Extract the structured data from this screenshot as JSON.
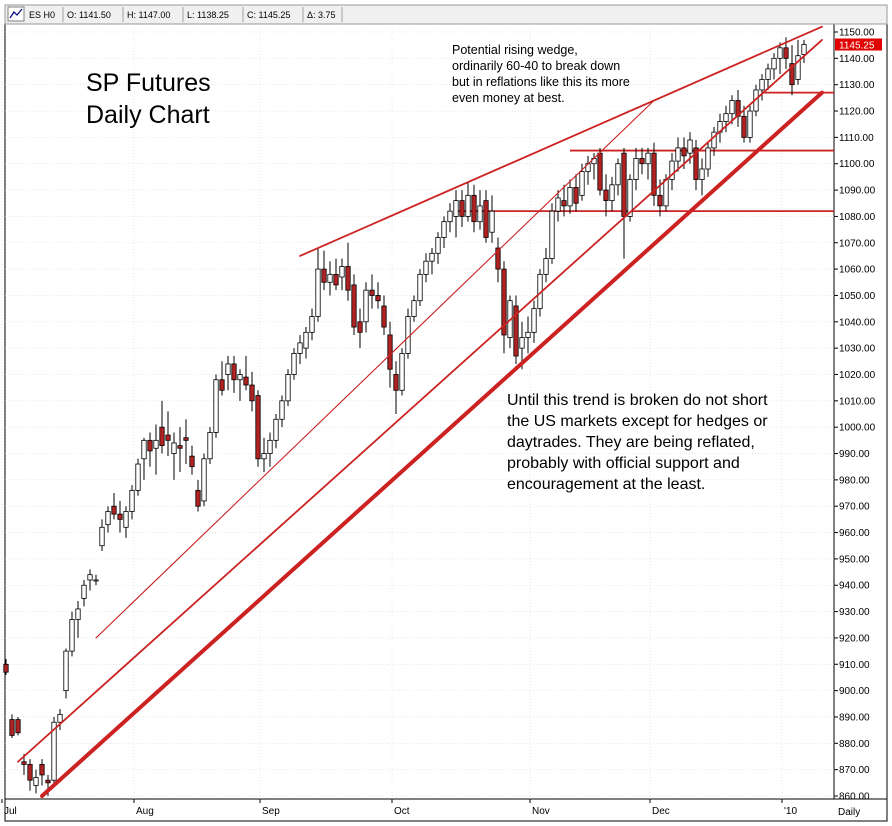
{
  "header": {
    "symbol": "ES H0",
    "open": "O: 1141.50",
    "high": "H: 1147.00",
    "low": "L: 1138.25",
    "close": "C: 1145.25",
    "change": "Δ: 3.75"
  },
  "annotations": {
    "title_line1": "SP Futures",
    "title_line2": "Daily Chart",
    "wedge_note": [
      "Potential rising wedge,",
      "ordinarily 60-40 to break down",
      "but in reflations like this its more",
      "even money at best."
    ],
    "trend_note": [
      "Until this trend is broken do not short",
      "the US markets except for hedges or",
      "daytrades. They are being reflated,",
      "probably with official support and",
      "encouragement at the least."
    ]
  },
  "colors": {
    "up": "#ffffff",
    "down": "#b22222",
    "trendline": "#cc2222",
    "grid": "#d8d8d8",
    "price_tag": "#e00000"
  },
  "chart_data": {
    "type": "candlestick",
    "period_label": "Daily",
    "price_tag": "1145.25",
    "ylim": [
      860,
      1150
    ],
    "y_ticks": [
      860,
      870,
      880,
      890,
      900,
      910,
      920,
      930,
      940,
      950,
      960,
      970,
      980,
      990,
      1000,
      1010,
      1020,
      1030,
      1040,
      1050,
      1060,
      1070,
      1080,
      1090,
      1100,
      1110,
      1120,
      1130,
      1140,
      1150
    ],
    "month_labels": [
      "Jul",
      "Aug",
      "Sep",
      "Oct",
      "Nov",
      "Dec",
      "'10"
    ],
    "month_start_index": [
      0,
      22,
      43,
      65,
      88,
      108,
      130
    ],
    "candles": [
      {
        "o": 910,
        "h": 912,
        "l": 906,
        "c": 907
      },
      {
        "o": 889,
        "h": 891,
        "l": 882,
        "c": 883
      },
      {
        "o": 889,
        "h": 890,
        "l": 883,
        "c": 884
      },
      {
        "o": 873,
        "h": 876,
        "l": 868,
        "c": 872
      },
      {
        "o": 872,
        "h": 874,
        "l": 862,
        "c": 866
      },
      {
        "o": 864,
        "h": 870,
        "l": 861,
        "c": 867
      },
      {
        "o": 872,
        "h": 874,
        "l": 864,
        "c": 868
      },
      {
        "o": 866,
        "h": 868,
        "l": 860,
        "c": 865
      },
      {
        "o": 866,
        "h": 890,
        "l": 864,
        "c": 888
      },
      {
        "o": 888,
        "h": 893,
        "l": 885,
        "c": 891
      },
      {
        "o": 900,
        "h": 916,
        "l": 897,
        "c": 915
      },
      {
        "o": 915,
        "h": 930,
        "l": 913,
        "c": 927
      },
      {
        "o": 927,
        "h": 934,
        "l": 920,
        "c": 931
      },
      {
        "o": 935,
        "h": 942,
        "l": 932,
        "c": 940
      },
      {
        "o": 942,
        "h": 946,
        "l": 938,
        "c": 944
      },
      {
        "o": 942,
        "h": 944,
        "l": 940,
        "c": 942
      },
      {
        "o": 955,
        "h": 965,
        "l": 953,
        "c": 962
      },
      {
        "o": 963,
        "h": 970,
        "l": 960,
        "c": 968
      },
      {
        "o": 970,
        "h": 975,
        "l": 965,
        "c": 967
      },
      {
        "o": 967,
        "h": 972,
        "l": 960,
        "c": 965
      },
      {
        "o": 962,
        "h": 970,
        "l": 958,
        "c": 968
      },
      {
        "o": 968,
        "h": 978,
        "l": 965,
        "c": 976
      },
      {
        "o": 976,
        "h": 988,
        "l": 974,
        "c": 986
      },
      {
        "o": 988,
        "h": 996,
        "l": 980,
        "c": 995
      },
      {
        "o": 995,
        "h": 998,
        "l": 985,
        "c": 991
      },
      {
        "o": 992,
        "h": 1001,
        "l": 982,
        "c": 995
      },
      {
        "o": 1000,
        "h": 1010,
        "l": 990,
        "c": 993
      },
      {
        "o": 997,
        "h": 1006,
        "l": 989,
        "c": 995
      },
      {
        "o": 990,
        "h": 998,
        "l": 980,
        "c": 994
      },
      {
        "o": 993,
        "h": 1000,
        "l": 983,
        "c": 992
      },
      {
        "o": 996,
        "h": 1003,
        "l": 986,
        "c": 995
      },
      {
        "o": 989,
        "h": 993,
        "l": 982,
        "c": 985
      },
      {
        "o": 976,
        "h": 980,
        "l": 968,
        "c": 970
      },
      {
        "o": 972,
        "h": 990,
        "l": 970,
        "c": 988
      },
      {
        "o": 988,
        "h": 1000,
        "l": 986,
        "c": 998
      },
      {
        "o": 998,
        "h": 1020,
        "l": 996,
        "c": 1018
      },
      {
        "o": 1018,
        "h": 1025,
        "l": 1012,
        "c": 1014
      },
      {
        "o": 1020,
        "h": 1027,
        "l": 1014,
        "c": 1024
      },
      {
        "o": 1024,
        "h": 1027,
        "l": 1013,
        "c": 1018
      },
      {
        "o": 1018,
        "h": 1022,
        "l": 1010,
        "c": 1020
      },
      {
        "o": 1019,
        "h": 1027,
        "l": 1014,
        "c": 1016
      },
      {
        "o": 1016,
        "h": 1021,
        "l": 1006,
        "c": 1010
      },
      {
        "o": 1012,
        "h": 1014,
        "l": 985,
        "c": 988
      },
      {
        "o": 988,
        "h": 996,
        "l": 983,
        "c": 990
      },
      {
        "o": 990,
        "h": 998,
        "l": 985,
        "c": 995
      },
      {
        "o": 995,
        "h": 1005,
        "l": 992,
        "c": 1003
      },
      {
        "o": 1003,
        "h": 1012,
        "l": 1000,
        "c": 1010
      },
      {
        "o": 1010,
        "h": 1022,
        "l": 1008,
        "c": 1020
      },
      {
        "o": 1020,
        "h": 1030,
        "l": 1018,
        "c": 1028
      },
      {
        "o": 1028,
        "h": 1035,
        "l": 1024,
        "c": 1032
      },
      {
        "o": 1030,
        "h": 1038,
        "l": 1026,
        "c": 1036
      },
      {
        "o": 1036,
        "h": 1045,
        "l": 1033,
        "c": 1042
      },
      {
        "o": 1042,
        "h": 1068,
        "l": 1040,
        "c": 1060
      },
      {
        "o": 1060,
        "h": 1067,
        "l": 1052,
        "c": 1055
      },
      {
        "o": 1055,
        "h": 1063,
        "l": 1050,
        "c": 1058
      },
      {
        "o": 1058,
        "h": 1064,
        "l": 1052,
        "c": 1054
      },
      {
        "o": 1057,
        "h": 1064,
        "l": 1052,
        "c": 1061
      },
      {
        "o": 1061,
        "h": 1070,
        "l": 1048,
        "c": 1052
      },
      {
        "o": 1054,
        "h": 1058,
        "l": 1035,
        "c": 1038
      },
      {
        "o": 1040,
        "h": 1045,
        "l": 1030,
        "c": 1036
      },
      {
        "o": 1040,
        "h": 1055,
        "l": 1036,
        "c": 1052
      },
      {
        "o": 1052,
        "h": 1058,
        "l": 1045,
        "c": 1050
      },
      {
        "o": 1050,
        "h": 1055,
        "l": 1045,
        "c": 1048
      },
      {
        "o": 1046,
        "h": 1050,
        "l": 1035,
        "c": 1038
      },
      {
        "o": 1035,
        "h": 1040,
        "l": 1015,
        "c": 1022
      },
      {
        "o": 1020,
        "h": 1025,
        "l": 1005,
        "c": 1014
      },
      {
        "o": 1014,
        "h": 1030,
        "l": 1012,
        "c": 1028
      },
      {
        "o": 1028,
        "h": 1045,
        "l": 1026,
        "c": 1042
      },
      {
        "o": 1042,
        "h": 1050,
        "l": 1040,
        "c": 1048
      },
      {
        "o": 1048,
        "h": 1060,
        "l": 1046,
        "c": 1058
      },
      {
        "o": 1058,
        "h": 1066,
        "l": 1055,
        "c": 1063
      },
      {
        "o": 1063,
        "h": 1068,
        "l": 1058,
        "c": 1066
      },
      {
        "o": 1066,
        "h": 1074,
        "l": 1062,
        "c": 1072
      },
      {
        "o": 1072,
        "h": 1080,
        "l": 1068,
        "c": 1078
      },
      {
        "o": 1078,
        "h": 1085,
        "l": 1074,
        "c": 1082
      },
      {
        "o": 1080,
        "h": 1090,
        "l": 1072,
        "c": 1086
      },
      {
        "o": 1086,
        "h": 1090,
        "l": 1076,
        "c": 1080
      },
      {
        "o": 1080,
        "h": 1093,
        "l": 1078,
        "c": 1088
      },
      {
        "o": 1088,
        "h": 1092,
        "l": 1074,
        "c": 1078
      },
      {
        "o": 1078,
        "h": 1090,
        "l": 1075,
        "c": 1084
      },
      {
        "o": 1086,
        "h": 1090,
        "l": 1070,
        "c": 1072
      },
      {
        "o": 1074,
        "h": 1088,
        "l": 1070,
        "c": 1082
      },
      {
        "o": 1068,
        "h": 1072,
        "l": 1055,
        "c": 1060
      },
      {
        "o": 1060,
        "h": 1063,
        "l": 1028,
        "c": 1035
      },
      {
        "o": 1034,
        "h": 1050,
        "l": 1030,
        "c": 1048
      },
      {
        "o": 1046,
        "h": 1050,
        "l": 1024,
        "c": 1027
      },
      {
        "o": 1030,
        "h": 1040,
        "l": 1022,
        "c": 1034
      },
      {
        "o": 1034,
        "h": 1042,
        "l": 1028,
        "c": 1036
      },
      {
        "o": 1036,
        "h": 1048,
        "l": 1032,
        "c": 1045
      },
      {
        "o": 1045,
        "h": 1060,
        "l": 1042,
        "c": 1058
      },
      {
        "o": 1058,
        "h": 1068,
        "l": 1055,
        "c": 1064
      },
      {
        "o": 1064,
        "h": 1085,
        "l": 1062,
        "c": 1082
      },
      {
        "o": 1082,
        "h": 1090,
        "l": 1078,
        "c": 1087
      },
      {
        "o": 1086,
        "h": 1092,
        "l": 1080,
        "c": 1084
      },
      {
        "o": 1084,
        "h": 1094,
        "l": 1081,
        "c": 1091
      },
      {
        "o": 1091,
        "h": 1096,
        "l": 1082,
        "c": 1085
      },
      {
        "o": 1088,
        "h": 1100,
        "l": 1086,
        "c": 1097
      },
      {
        "o": 1097,
        "h": 1103,
        "l": 1092,
        "c": 1100
      },
      {
        "o": 1100,
        "h": 1104,
        "l": 1094,
        "c": 1102
      },
      {
        "o": 1104,
        "h": 1106,
        "l": 1088,
        "c": 1090
      },
      {
        "o": 1090,
        "h": 1096,
        "l": 1080,
        "c": 1086
      },
      {
        "o": 1086,
        "h": 1095,
        "l": 1082,
        "c": 1092
      },
      {
        "o": 1092,
        "h": 1102,
        "l": 1088,
        "c": 1100
      },
      {
        "o": 1104,
        "h": 1106,
        "l": 1064,
        "c": 1080
      },
      {
        "o": 1080,
        "h": 1096,
        "l": 1078,
        "c": 1094
      },
      {
        "o": 1094,
        "h": 1106,
        "l": 1090,
        "c": 1102
      },
      {
        "o": 1102,
        "h": 1106,
        "l": 1096,
        "c": 1100
      },
      {
        "o": 1100,
        "h": 1106,
        "l": 1094,
        "c": 1104
      },
      {
        "o": 1104,
        "h": 1108,
        "l": 1084,
        "c": 1088
      },
      {
        "o": 1088,
        "h": 1094,
        "l": 1080,
        "c": 1084
      },
      {
        "o": 1084,
        "h": 1096,
        "l": 1082,
        "c": 1094
      },
      {
        "o": 1094,
        "h": 1104,
        "l": 1090,
        "c": 1101
      },
      {
        "o": 1101,
        "h": 1110,
        "l": 1097,
        "c": 1106
      },
      {
        "o": 1106,
        "h": 1110,
        "l": 1098,
        "c": 1103
      },
      {
        "o": 1104,
        "h": 1112,
        "l": 1100,
        "c": 1109
      },
      {
        "o": 1106,
        "h": 1109,
        "l": 1090,
        "c": 1094
      },
      {
        "o": 1094,
        "h": 1102,
        "l": 1088,
        "c": 1098
      },
      {
        "o": 1098,
        "h": 1108,
        "l": 1095,
        "c": 1106
      },
      {
        "o": 1106,
        "h": 1114,
        "l": 1103,
        "c": 1112
      },
      {
        "o": 1112,
        "h": 1119,
        "l": 1108,
        "c": 1116
      },
      {
        "o": 1116,
        "h": 1122,
        "l": 1112,
        "c": 1119
      },
      {
        "o": 1119,
        "h": 1126,
        "l": 1115,
        "c": 1124
      },
      {
        "o": 1124,
        "h": 1128,
        "l": 1114,
        "c": 1118
      },
      {
        "o": 1118,
        "h": 1122,
        "l": 1108,
        "c": 1110
      },
      {
        "o": 1110,
        "h": 1122,
        "l": 1108,
        "c": 1120
      },
      {
        "o": 1120,
        "h": 1130,
        "l": 1118,
        "c": 1128
      },
      {
        "o": 1128,
        "h": 1134,
        "l": 1124,
        "c": 1132
      },
      {
        "o": 1132,
        "h": 1138,
        "l": 1128,
        "c": 1136
      },
      {
        "o": 1136,
        "h": 1142,
        "l": 1132,
        "c": 1140
      },
      {
        "o": 1140,
        "h": 1146,
        "l": 1134,
        "c": 1144
      },
      {
        "o": 1144,
        "h": 1148,
        "l": 1136,
        "c": 1140
      },
      {
        "o": 1138,
        "h": 1145,
        "l": 1126,
        "c": 1130
      },
      {
        "o": 1132,
        "h": 1147,
        "l": 1130,
        "c": 1141
      },
      {
        "o": 1141.5,
        "h": 1147,
        "l": 1138.25,
        "c": 1145.25
      }
    ],
    "trendlines": [
      {
        "name": "wedge-upper",
        "from": [
          49,
          1065
        ],
        "to": [
          136,
          1152
        ],
        "weight": "medium"
      },
      {
        "name": "wedge-lower",
        "from": [
          15,
          920
        ],
        "to": [
          108,
          1124
        ],
        "weight": "thin"
      },
      {
        "name": "channel-inner",
        "from": [
          2,
          873
        ],
        "to": [
          136,
          1147
        ],
        "weight": "medium"
      },
      {
        "name": "main-support",
        "from": [
          6,
          860
        ],
        "to": [
          136,
          1127
        ],
        "weight": "heavy"
      }
    ],
    "horizontal_lines": [
      {
        "name": "resistance-1105",
        "value": 1105,
        "from_index": 94
      },
      {
        "name": "support-1082",
        "value": 1082,
        "from_index": 75
      },
      {
        "name": "support-1127",
        "value": 1127,
        "from_index": 126
      }
    ]
  }
}
